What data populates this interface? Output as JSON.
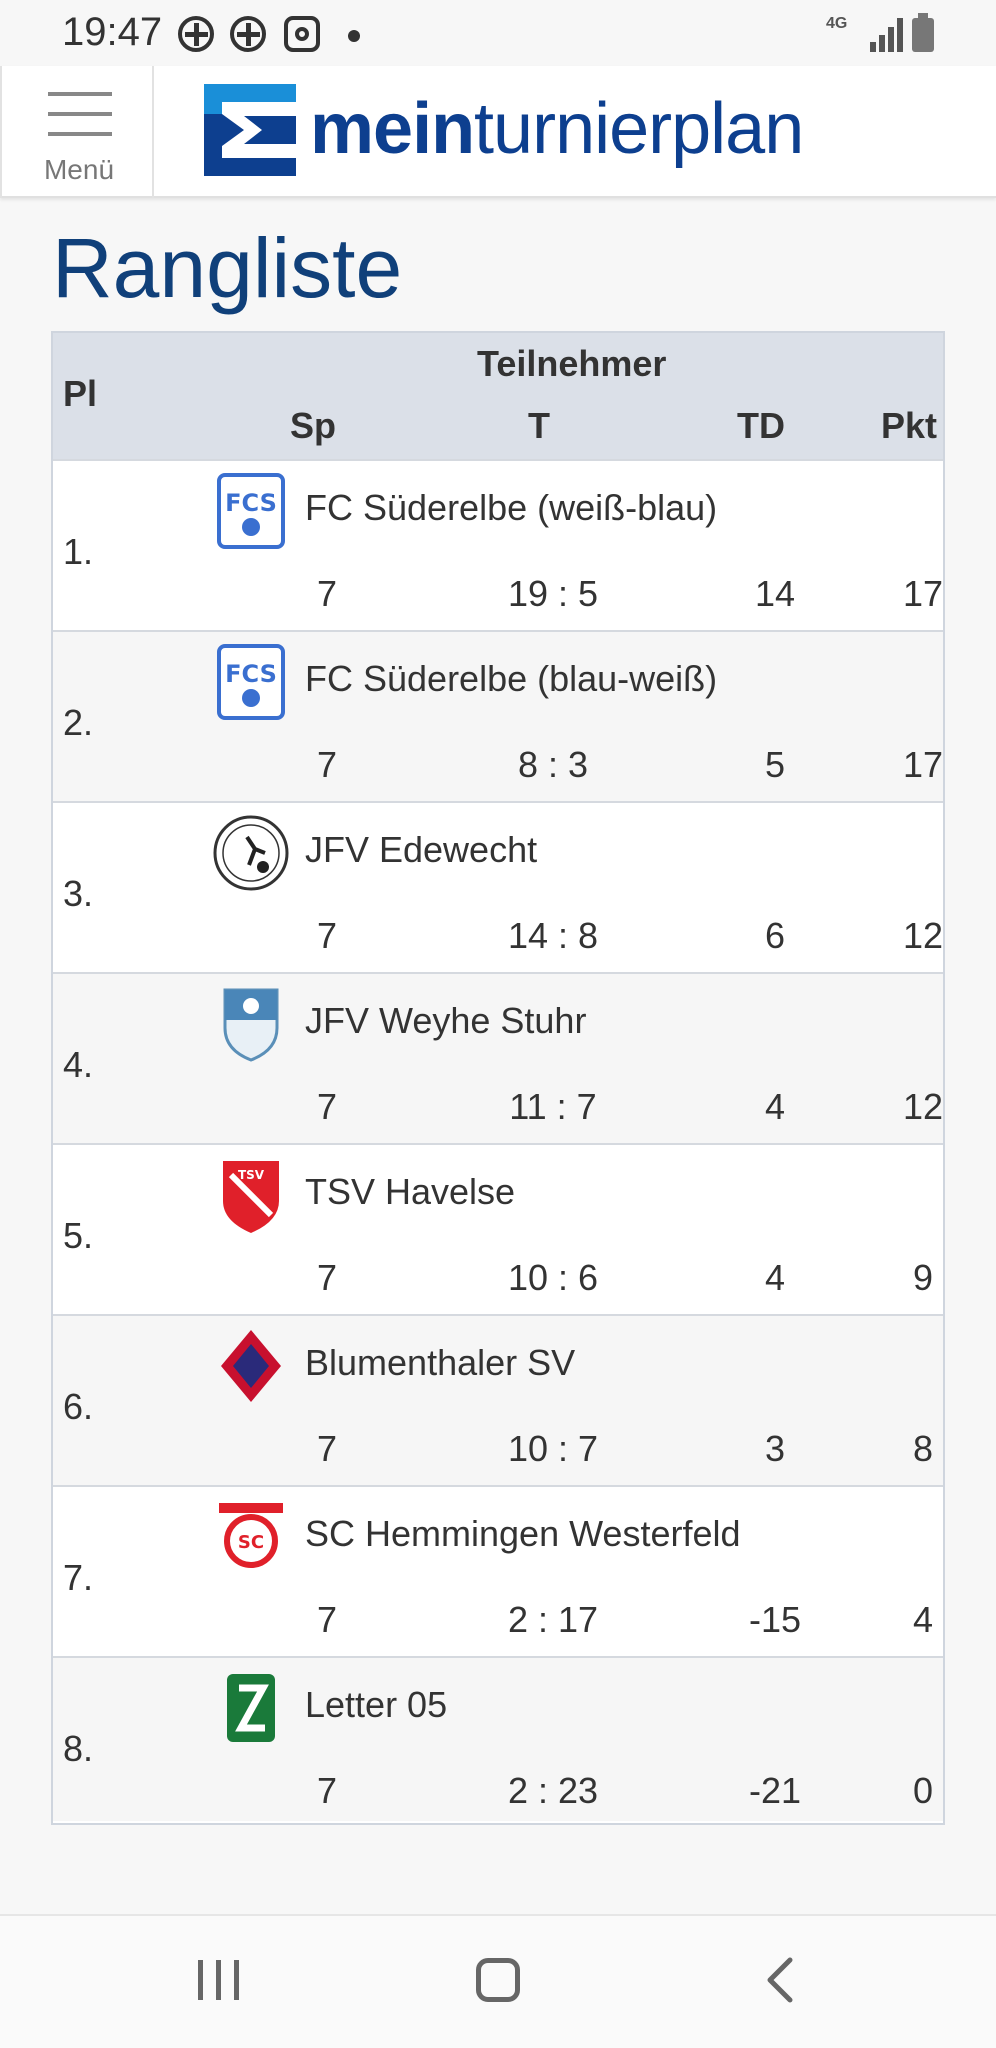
{
  "status_bar": {
    "time": "19:47",
    "network": "4G",
    "icons": [
      "plus-circle-icon",
      "plus-circle-icon",
      "instagram-icon",
      "dot-icon",
      "signal-icon",
      "battery-icon"
    ]
  },
  "header": {
    "menu_label": "Menü",
    "logo_bold": "mein",
    "logo_light": "turnierplan",
    "brand_color": "#0d3f8f",
    "accent_color": "#1a8fd8"
  },
  "page": {
    "title": "Rangliste"
  },
  "table": {
    "headers": {
      "pl": "Pl",
      "team": "Teilnehmer",
      "sp": "Sp",
      "t": "T",
      "td": "TD",
      "pkt": "Pkt"
    },
    "rows": [
      {
        "pl": "1.",
        "team": "FC Süderelbe (weiß-blau)",
        "logo": "fcs-logo-icon",
        "sp": "7",
        "t": "19 : 5",
        "td": "14",
        "pkt": "17"
      },
      {
        "pl": "2.",
        "team": "FC Süderelbe (blau-weiß)",
        "logo": "fcs-logo-icon",
        "sp": "7",
        "t": "8 : 3",
        "td": "5",
        "pkt": "17"
      },
      {
        "pl": "3.",
        "team": "JFV Edewecht",
        "logo": "jfv-edewecht-logo-icon",
        "sp": "7",
        "t": "14 : 8",
        "td": "6",
        "pkt": "12"
      },
      {
        "pl": "4.",
        "team": "JFV Weyhe Stuhr",
        "logo": "jfv-weyhe-stuhr-logo-icon",
        "sp": "7",
        "t": "11 : 7",
        "td": "4",
        "pkt": "12"
      },
      {
        "pl": "5.",
        "team": "TSV Havelse",
        "logo": "tsv-havelse-logo-icon",
        "sp": "7",
        "t": "10 : 6",
        "td": "4",
        "pkt": "9"
      },
      {
        "pl": "6.",
        "team": "Blumenthaler SV",
        "logo": "blumenthaler-sv-logo-icon",
        "sp": "7",
        "t": "10 : 7",
        "td": "3",
        "pkt": "8"
      },
      {
        "pl": "7.",
        "team": "SC Hemmingen Westerfeld",
        "logo": "sc-hemmingen-logo-icon",
        "sp": "7",
        "t": "2 : 17",
        "td": "-15",
        "pkt": "4"
      },
      {
        "pl": "8.",
        "team": "Letter 05",
        "logo": "letter-05-logo-icon",
        "sp": "7",
        "t": "2 : 23",
        "td": "-21",
        "pkt": "0"
      }
    ]
  },
  "nav_bar": {
    "icons": [
      "recents-icon",
      "home-icon",
      "back-icon"
    ]
  }
}
